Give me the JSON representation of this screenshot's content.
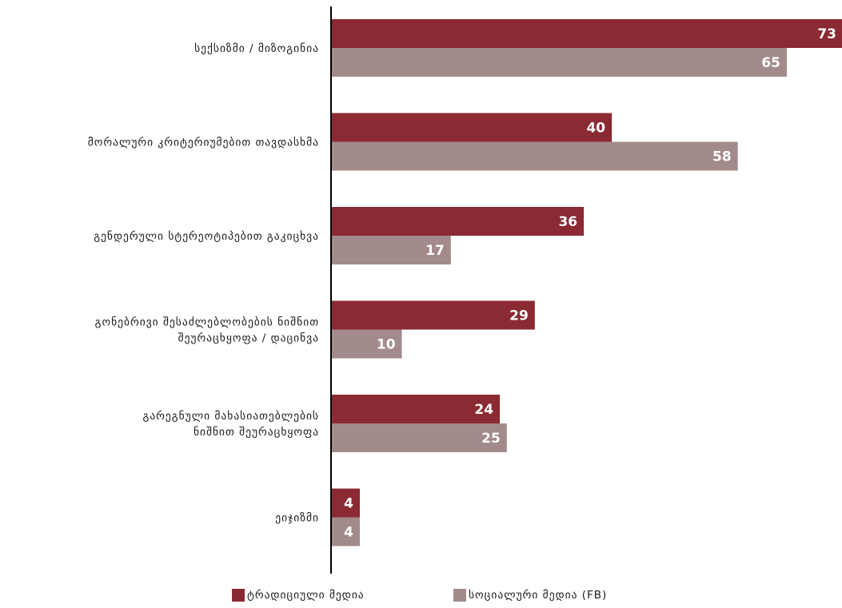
{
  "chart_data": {
    "type": "bar",
    "orientation": "horizontal",
    "categories": [
      [
        "სექსიზმი / მიზოგინია"
      ],
      [
        "მორალური კრიტერიუმებით თავდასხმა"
      ],
      [
        "გენდერული სტერეოტიპებით გაკიცხვა"
      ],
      [
        "გონებრივი შესაძლებლობების ნიშნით",
        "შეურაცხყოფა / დაცინვა"
      ],
      [
        "გარეგნული მახასიათებლების",
        "ნიშნით შეურაცხყოფა"
      ],
      [
        "ეიჯიზმი"
      ]
    ],
    "series": [
      {
        "name": "ტრადიციული მედია",
        "color": "#8b2a33",
        "values": [
          73,
          40,
          36,
          29,
          24,
          4
        ]
      },
      {
        "name": "სოციალური მედია (FB)",
        "color": "#a38b8b",
        "values": [
          65,
          58,
          17,
          10,
          25,
          4
        ]
      }
    ],
    "xlim": [
      0,
      73
    ],
    "legend_position": "bottom",
    "grid": false
  }
}
